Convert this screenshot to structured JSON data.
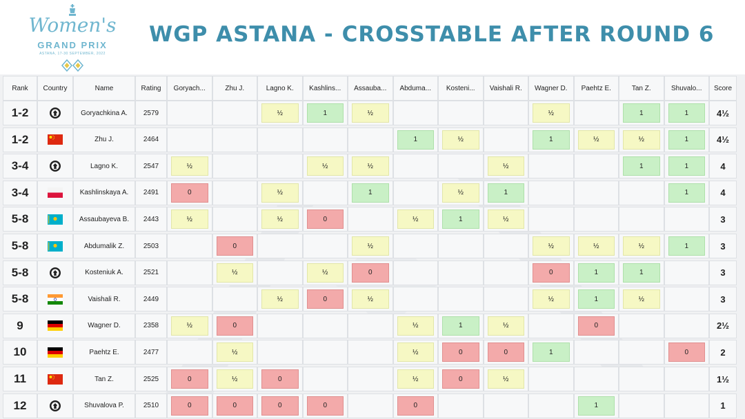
{
  "header": {
    "title": "WGP ASTANA - CROSSTABLE AFTER ROUND 6",
    "logo": {
      "script_text": "Women's",
      "grand_prix": "GRAND PRIX",
      "subtitle": "ASTANA, 17-30 SEPTEMBER, 2022"
    }
  },
  "colors": {
    "title": "#3e8eab",
    "win": "#c9f0c6",
    "draw": "#f6f8c4",
    "loss": "#f3aaaa"
  },
  "table": {
    "headers": {
      "rank": "Rank",
      "country": "Country",
      "name": "Name",
      "rating": "Rating",
      "score": "Score"
    },
    "opponent_headers": [
      "Goryach...",
      "Zhu J.",
      "Lagno K.",
      "Kashlins...",
      "Assauba...",
      "Abduma...",
      "Kosteni...",
      "Vaishali R.",
      "Wagner D.",
      "Paehtz E.",
      "Tan Z.",
      "Shuvalo..."
    ],
    "rows": [
      {
        "rank": "1-2",
        "country": "fide",
        "name": "Goryachkina A.",
        "rating": "2579",
        "score": "4½",
        "results": [
          "",
          "",
          "½",
          "1",
          "½",
          "",
          "",
          "",
          "½",
          "",
          "1",
          "1"
        ]
      },
      {
        "rank": "1-2",
        "country": "china",
        "name": "Zhu J.",
        "rating": "2464",
        "score": "4½",
        "results": [
          "",
          "",
          "",
          "",
          "",
          "1",
          "½",
          "",
          "1",
          "½",
          "½",
          "1"
        ]
      },
      {
        "rank": "3-4",
        "country": "fide",
        "name": "Lagno K.",
        "rating": "2547",
        "score": "4",
        "results": [
          "½",
          "",
          "",
          "½",
          "½",
          "",
          "",
          "½",
          "",
          "",
          "1",
          "1"
        ]
      },
      {
        "rank": "3-4",
        "country": "poland",
        "name": "Kashlinskaya A.",
        "rating": "2491",
        "score": "4",
        "results": [
          "0",
          "",
          "½",
          "",
          "1",
          "",
          "½",
          "1",
          "",
          "",
          "",
          "1"
        ]
      },
      {
        "rank": "5-8",
        "country": "kazakhstan",
        "name": "Assaubayeva B.",
        "rating": "2443",
        "score": "3",
        "results": [
          "½",
          "",
          "½",
          "0",
          "",
          "½",
          "1",
          "½",
          "",
          "",
          "",
          ""
        ]
      },
      {
        "rank": "5-8",
        "country": "kazakhstan",
        "name": "Abdumalik Z.",
        "rating": "2503",
        "score": "3",
        "results": [
          "",
          "0",
          "",
          "",
          "½",
          "",
          "",
          "",
          "½",
          "½",
          "½",
          "1"
        ]
      },
      {
        "rank": "5-8",
        "country": "fide",
        "name": "Kosteniuk A.",
        "rating": "2521",
        "score": "3",
        "results": [
          "",
          "½",
          "",
          "½",
          "0",
          "",
          "",
          "",
          "0",
          "1",
          "1",
          ""
        ]
      },
      {
        "rank": "5-8",
        "country": "india",
        "name": "Vaishali R.",
        "rating": "2449",
        "score": "3",
        "results": [
          "",
          "",
          "½",
          "0",
          "½",
          "",
          "",
          "",
          "½",
          "1",
          "½",
          ""
        ]
      },
      {
        "rank": "9",
        "country": "germany",
        "name": "Wagner D.",
        "rating": "2358",
        "score": "2½",
        "results": [
          "½",
          "0",
          "",
          "",
          "",
          "½",
          "1",
          "½",
          "",
          "0",
          "",
          ""
        ]
      },
      {
        "rank": "10",
        "country": "germany",
        "name": "Paehtz E.",
        "rating": "2477",
        "score": "2",
        "results": [
          "",
          "½",
          "",
          "",
          "",
          "½",
          "0",
          "0",
          "1",
          "",
          "",
          "0"
        ]
      },
      {
        "rank": "11",
        "country": "china",
        "name": "Tan Z.",
        "rating": "2525",
        "score": "1½",
        "results": [
          "0",
          "½",
          "0",
          "",
          "",
          "½",
          "0",
          "½",
          "",
          "",
          "",
          ""
        ]
      },
      {
        "rank": "12",
        "country": "fide",
        "name": "Shuvalova P.",
        "rating": "2510",
        "score": "1",
        "results": [
          "0",
          "0",
          "0",
          "0",
          "",
          "0",
          "",
          "",
          "",
          "1",
          "",
          ""
        ]
      }
    ]
  }
}
